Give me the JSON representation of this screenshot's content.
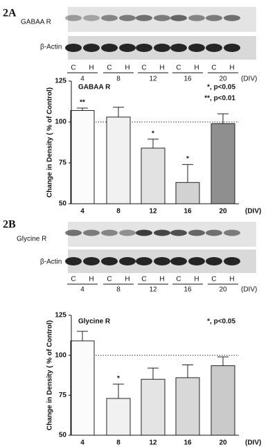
{
  "chart_data": [
    {
      "type": "bar",
      "panel": "2A",
      "title": "GABAA R",
      "ylabel": "Change in Density ( % of Control)",
      "xlabel": "(DIV)",
      "categories": [
        "4",
        "8",
        "12",
        "16",
        "20"
      ],
      "values": [
        107,
        103,
        84,
        63,
        99
      ],
      "errors": [
        1.5,
        6,
        5.5,
        11,
        6
      ],
      "colors": [
        "#fbfbfb",
        "#f1f1f1",
        "#e2e2e2",
        "#d2d2d2",
        "#8f8f8f"
      ],
      "significance": [
        "**",
        null,
        "*",
        "*",
        null
      ],
      "annotations": [
        "*, p<0.05",
        "**, p<0.01"
      ],
      "hline": 100,
      "ylim": [
        50,
        125
      ],
      "yticks": [
        50,
        75,
        100,
        125
      ]
    },
    {
      "type": "bar",
      "panel": "2B",
      "title": "Glycine R",
      "ylabel": "Change in Density ( % of Control)",
      "xlabel": "(DIV)",
      "categories": [
        "4",
        "8",
        "12",
        "16",
        "20"
      ],
      "values": [
        109,
        73,
        85,
        86,
        93.5
      ],
      "errors": [
        6,
        9,
        7,
        8,
        5.5
      ],
      "colors": [
        "#fbfbfb",
        "#f1f1f1",
        "#e4e4e4",
        "#d8d8d8",
        "#cacaca"
      ],
      "significance": [
        null,
        "*",
        null,
        null,
        null
      ],
      "annotations": [
        "*, p<0.05"
      ],
      "hline": 100,
      "ylim": [
        50,
        125
      ],
      "yticks": [
        50,
        75,
        100,
        125
      ]
    }
  ],
  "blots": [
    {
      "rows": [
        "GABAA R",
        "β-Actin"
      ],
      "lanes": [
        "C",
        "H"
      ],
      "groups": [
        "4",
        "8",
        "12",
        "16",
        "20"
      ],
      "unit": "(DIV)"
    },
    {
      "rows": [
        "Glycine R",
        "β-Actin"
      ],
      "lanes": [
        "C",
        "H"
      ],
      "groups": [
        "4",
        "8",
        "12",
        "16",
        "20"
      ],
      "unit": "(DIV)"
    }
  ]
}
